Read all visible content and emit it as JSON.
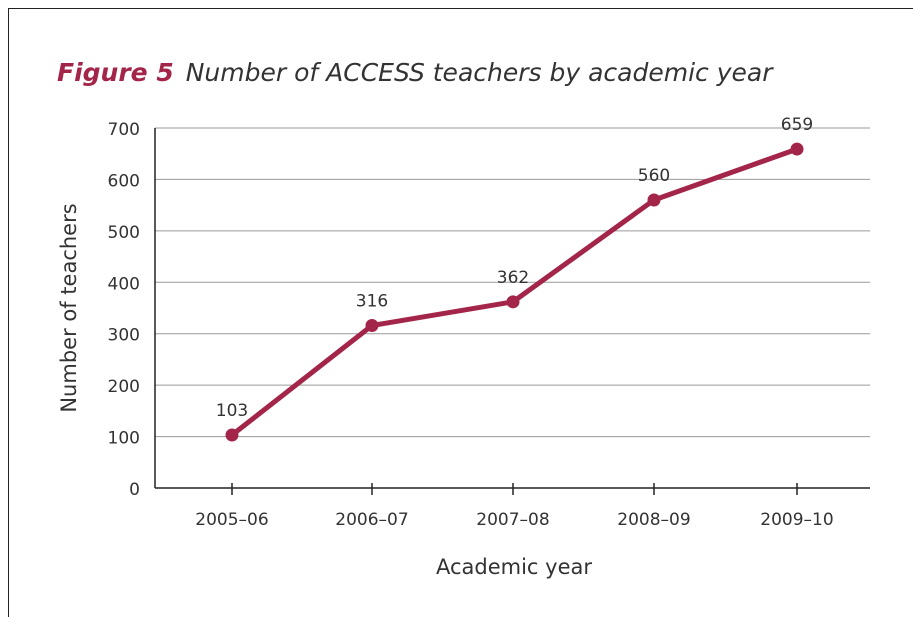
{
  "title": {
    "figure_label": "Figure 5",
    "text": "Number of ACCESS teachers by academic year"
  },
  "colors": {
    "series": "#a3264a",
    "title_label": "#a3264a",
    "grid": "#9a9a9a",
    "text": "#333333"
  },
  "chart_data": {
    "type": "line",
    "categories": [
      "2005–06",
      "2006–07",
      "2007–08",
      "2008–09",
      "2009–10"
    ],
    "series": [
      {
        "values": [
          103,
          316,
          362,
          560,
          659
        ],
        "data_labels": [
          "103",
          "316",
          "362",
          "560",
          "659"
        ]
      }
    ],
    "xlabel": "Academic year",
    "ylabel": "Number of teachers",
    "ylim": [
      0,
      700
    ],
    "yticks": [
      0,
      100,
      200,
      300,
      400,
      500,
      600,
      700
    ],
    "grid": true,
    "legend": "none"
  }
}
